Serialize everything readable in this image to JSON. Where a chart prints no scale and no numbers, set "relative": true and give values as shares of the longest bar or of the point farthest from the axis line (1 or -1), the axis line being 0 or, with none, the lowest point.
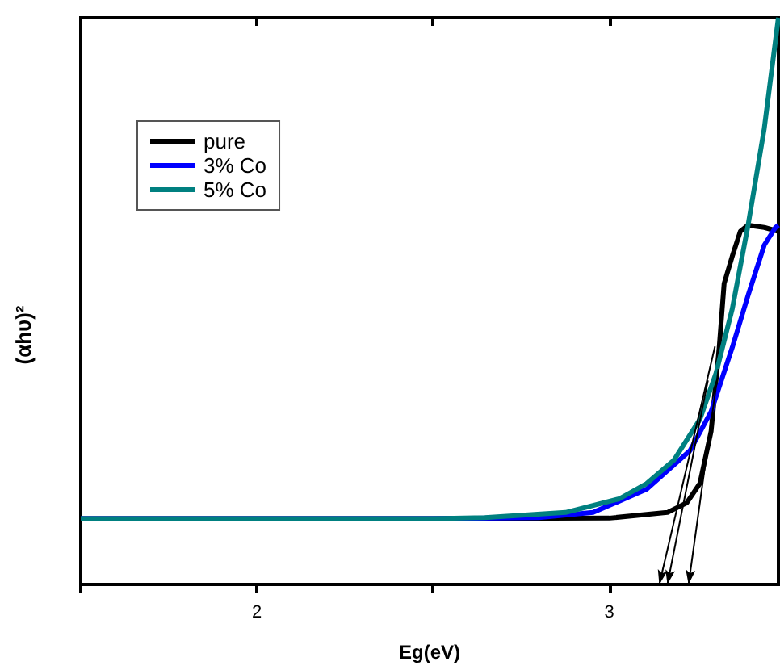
{
  "chart_data": {
    "type": "line",
    "xlabel": "Eg(eV)",
    "ylabel": "(αhυ)²",
    "relative": true,
    "xlim": [
      1.5,
      3.48
    ],
    "xticks": [
      {
        "value": 1.5,
        "label": null
      },
      2,
      {
        "value": 2.5,
        "label": null
      },
      3
    ],
    "tick_labels": "x",
    "legend": "top left",
    "marker": "none",
    "grid": false,
    "series": [
      {
        "name": "pure",
        "color": "#000000",
        "x": [
          1.5,
          2.5,
          3.0,
          3.165,
          3.22,
          3.257,
          3.289,
          3.312,
          3.326,
          3.349,
          3.372,
          3.394,
          3.44,
          3.48
        ],
        "values": [
          0.116,
          0.116,
          0.117,
          0.127,
          0.144,
          0.178,
          0.27,
          0.418,
          0.531,
          0.579,
          0.623,
          0.634,
          0.63,
          0.623
        ]
      },
      {
        "name": "3% Co",
        "color": "#0000ff",
        "x": [
          1.5,
          2.5,
          2.8,
          2.954,
          3.106,
          3.229,
          3.289,
          3.349,
          3.394,
          3.44,
          3.472,
          3.48
        ],
        "values": [
          0.116,
          0.116,
          0.118,
          0.127,
          0.168,
          0.236,
          0.305,
          0.418,
          0.51,
          0.599,
          0.63,
          0.634
        ]
      },
      {
        "name": "5% Co",
        "color": "#008080",
        "x": [
          1.5,
          2.5,
          2.647,
          2.876,
          3.028,
          3.106,
          3.183,
          3.257,
          3.303,
          3.349,
          3.394,
          3.44,
          3.48
        ],
        "values": [
          0.116,
          0.116,
          0.118,
          0.127,
          0.151,
          0.178,
          0.219,
          0.291,
          0.373,
          0.486,
          0.634,
          0.805,
          1
        ]
      }
    ]
  }
}
